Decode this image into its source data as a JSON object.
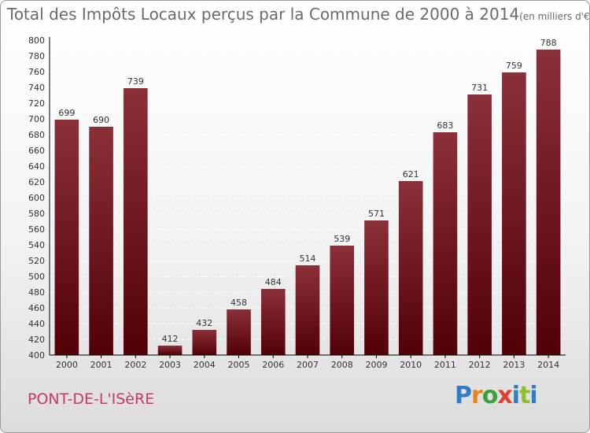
{
  "title": "Total des Impôts Locaux perçus par la Commune de 2000 à 2014",
  "unit": "(en milliers d'€)",
  "commune": "PONT-DE-L'ISèRE",
  "brand": {
    "letters": [
      "P",
      "r",
      "o",
      "x",
      "i",
      "t",
      "i"
    ],
    "colors": [
      "#2f7dc4",
      "#e8851a",
      "#3aa13a",
      "#e23d2d",
      "#2f7dc4",
      "#8bbf2f",
      "#2f7dc4"
    ]
  },
  "colors": {
    "bar_top": "#8b3038",
    "bar_bottom": "#520006",
    "axis": "#000000",
    "grid": "#ffffff",
    "tick_text": "#333333",
    "label_text": "#333333"
  },
  "chart_data": {
    "type": "bar",
    "title": "Total des Impôts Locaux perçus par la Commune de 2000 à 2014",
    "categories": [
      "2000",
      "2001",
      "2002",
      "2003",
      "2004",
      "2005",
      "2006",
      "2007",
      "2008",
      "2009",
      "2010",
      "2011",
      "2012",
      "2013",
      "2014"
    ],
    "values": [
      699,
      690,
      739,
      412,
      432,
      458,
      484,
      514,
      539,
      571,
      621,
      683,
      731,
      759,
      788
    ],
    "xlabel": "",
    "ylabel": "",
    "ylim": [
      400,
      800
    ],
    "yticks": [
      400,
      420,
      440,
      460,
      480,
      500,
      520,
      540,
      560,
      580,
      600,
      620,
      640,
      660,
      680,
      700,
      720,
      740,
      760,
      780,
      800
    ],
    "grid": true,
    "data_labels": true
  }
}
